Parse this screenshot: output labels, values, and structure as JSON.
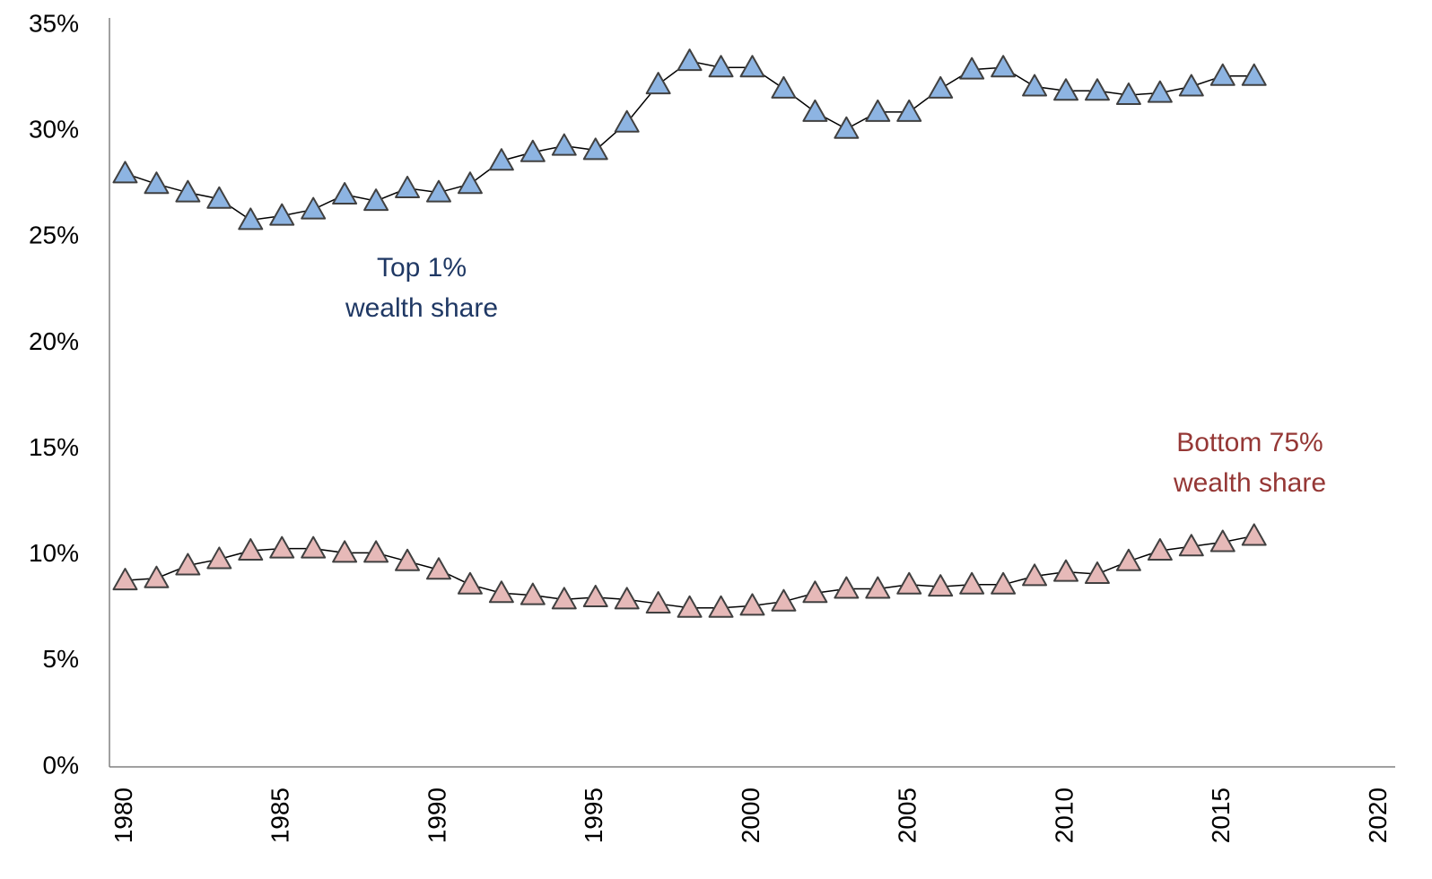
{
  "chart_data": {
    "type": "line",
    "x": [
      1980,
      1981,
      1982,
      1983,
      1984,
      1985,
      1986,
      1987,
      1988,
      1989,
      1990,
      1991,
      1992,
      1993,
      1994,
      1995,
      1996,
      1997,
      1998,
      1999,
      2000,
      2001,
      2002,
      2003,
      2004,
      2005,
      2006,
      2007,
      2008,
      2009,
      2010,
      2011,
      2012,
      2013,
      2014,
      2015,
      2016
    ],
    "series": [
      {
        "color": "#8db4e2",
        "values": [
          28.0,
          27.5,
          27.1,
          26.8,
          25.8,
          26.0,
          26.3,
          27.0,
          26.7,
          27.3,
          27.1,
          27.5,
          28.6,
          29.0,
          29.3,
          29.1,
          30.4,
          32.2,
          33.3,
          33.0,
          33.0,
          32.0,
          30.9,
          30.1,
          30.9,
          30.9,
          32.0,
          32.9,
          33.0,
          32.1,
          31.9,
          31.9,
          31.7,
          31.8,
          32.1,
          32.6,
          32.6
        ]
      },
      {
        "color": "#e6b9b8",
        "values": [
          8.8,
          8.9,
          9.5,
          9.8,
          10.2,
          10.3,
          10.3,
          10.1,
          10.1,
          9.7,
          9.3,
          8.6,
          8.2,
          8.1,
          7.9,
          8.0,
          7.9,
          7.7,
          7.5,
          7.5,
          7.6,
          7.8,
          8.2,
          8.4,
          8.4,
          8.6,
          8.5,
          8.6,
          8.6,
          9.0,
          9.2,
          9.1,
          9.7,
          10.2,
          10.4,
          10.6,
          10.9
        ]
      }
    ],
    "annotations": [
      {
        "lines": [
          "Top 1%",
          "wealth share"
        ],
        "color": "#1f3864"
      },
      {
        "lines": [
          "Bottom 75%",
          "wealth share"
        ],
        "color": "#953735"
      }
    ],
    "xlim": [
      1979.5,
      2020.5
    ],
    "xticks": [
      1980,
      1985,
      1990,
      1995,
      2000,
      2005,
      2010,
      2015,
      2020
    ],
    "ylim": [
      0,
      35
    ],
    "yticks": [
      {
        "value": 0,
        "label": "0%"
      },
      {
        "value": 5,
        "label": "5%"
      },
      {
        "value": 10,
        "label": "10%"
      },
      {
        "value": 15,
        "label": "15%"
      },
      {
        "value": 20,
        "label": "20%"
      },
      {
        "value": 25,
        "label": "25%"
      },
      {
        "value": 30,
        "label": "30%"
      },
      {
        "value": 35,
        "label": "35%"
      }
    ],
    "grid": false
  }
}
